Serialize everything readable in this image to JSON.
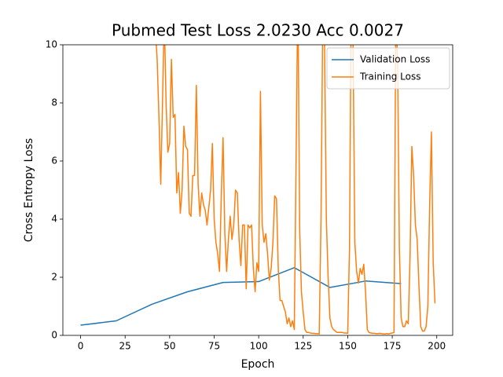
{
  "chart_data": {
    "type": "line",
    "title": "Pubmed Test Loss 2.0230 Acc 0.0027",
    "x_label": "Epoch",
    "y_label": "Cross Entropy Loss",
    "xlim": [
      -9.95,
      208.95
    ],
    "ylim": [
      0,
      10
    ],
    "xticks": [
      0,
      25,
      50,
      75,
      100,
      125,
      150,
      175,
      200
    ],
    "yticks": [
      0,
      2,
      4,
      6,
      8,
      10
    ],
    "legend": "upper right",
    "series": [
      {
        "name": "Validation Loss",
        "color": "#1f77b4",
        "x": [
          0,
          20,
          40,
          60,
          80,
          100,
          120,
          140,
          160,
          180
        ],
        "values": [
          0.35,
          0.5,
          1.07,
          1.5,
          1.82,
          1.85,
          2.33,
          1.65,
          1.87,
          1.78
        ]
      },
      {
        "name": "Training Loss",
        "color": "#ff7f0e",
        "x": [
          42,
          43,
          44,
          45,
          46,
          47,
          48,
          49,
          50,
          51,
          52,
          53,
          54,
          55,
          56,
          57,
          58,
          59,
          60,
          61,
          62,
          63,
          64,
          65,
          66,
          67,
          68,
          69,
          70,
          71,
          72,
          73,
          74,
          75,
          76,
          77,
          78,
          79,
          80,
          81,
          82,
          83,
          84,
          85,
          86,
          87,
          88,
          89,
          90,
          91,
          92,
          93,
          94,
          95,
          96,
          97,
          98,
          99,
          100,
          101,
          102,
          103,
          104,
          105,
          106,
          107,
          108,
          109,
          110,
          111,
          112,
          113,
          114,
          115,
          116,
          117,
          118,
          119,
          120,
          121,
          122,
          123,
          124,
          125,
          126,
          127,
          128,
          129,
          130,
          131,
          132,
          133,
          134,
          135,
          136,
          137,
          138,
          139,
          140,
          141,
          142,
          143,
          144,
          145,
          146,
          147,
          148,
          149,
          150,
          151,
          152,
          153,
          154,
          155,
          156,
          157,
          158,
          159,
          160,
          161,
          162,
          163,
          164,
          165,
          166,
          167,
          168,
          169,
          170,
          171,
          172,
          173,
          174,
          175,
          176,
          177,
          178,
          179,
          180,
          181,
          182,
          183,
          184,
          185,
          186,
          187,
          188,
          189,
          190,
          191,
          192,
          193,
          194,
          195,
          196,
          197,
          198,
          199
        ],
        "values": [
          10.5,
          9.5,
          7.5,
          5.2,
          8,
          11,
          8,
          6.3,
          6.6,
          9.5,
          7.5,
          7.6,
          4.9,
          5.6,
          4.2,
          5,
          7.2,
          6.5,
          6.4,
          4.2,
          4.1,
          5.5,
          5.5,
          8.6,
          5.2,
          4.1,
          4.9,
          4.5,
          4.3,
          3.8,
          4.4,
          5.0,
          6.6,
          4.0,
          3.2,
          2.8,
          2.2,
          4.8,
          6.8,
          3.5,
          2.2,
          3.3,
          4.1,
          3.3,
          3.8,
          5.0,
          4.9,
          3.3,
          2.4,
          3.8,
          3.8,
          1.6,
          3.8,
          3.7,
          3.8,
          2.3,
          1.5,
          2.5,
          2.2,
          8.4,
          3.8,
          3.2,
          3.5,
          2.8,
          1.9,
          2.3,
          3.2,
          4.8,
          4.7,
          2.3,
          1.2,
          1.2,
          1.0,
          0.8,
          0.4,
          0.6,
          0.3,
          0.5,
          0.2,
          6,
          12,
          3.7,
          1.5,
          0.8,
          0.2,
          0.1,
          0.1,
          0.08,
          0.07,
          0.07,
          0.06,
          0.06,
          0.05,
          4,
          11,
          10,
          4,
          2,
          0.6,
          0.3,
          0.2,
          0.15,
          0.1,
          0.1,
          0.1,
          0.1,
          0.08,
          0.08,
          0.07,
          3,
          12,
          10,
          3.2,
          2.2,
          1.8,
          2.3,
          2.1,
          2.45,
          1.5,
          0.2,
          0.1,
          0.08,
          0.07,
          0.07,
          0.06,
          0.06,
          0.07,
          0.06,
          0.05,
          0.05,
          0.06,
          0.05,
          0.07,
          0.08,
          0.1,
          11,
          9.5,
          3,
          0.6,
          0.3,
          0.3,
          0.5,
          0.4,
          2.7,
          6.5,
          5.5,
          3.8,
          3.3,
          1.7,
          0.3,
          0.15,
          0.15,
          0.3,
          1,
          4.5,
          7,
          2.5,
          1.1
        ]
      }
    ]
  }
}
